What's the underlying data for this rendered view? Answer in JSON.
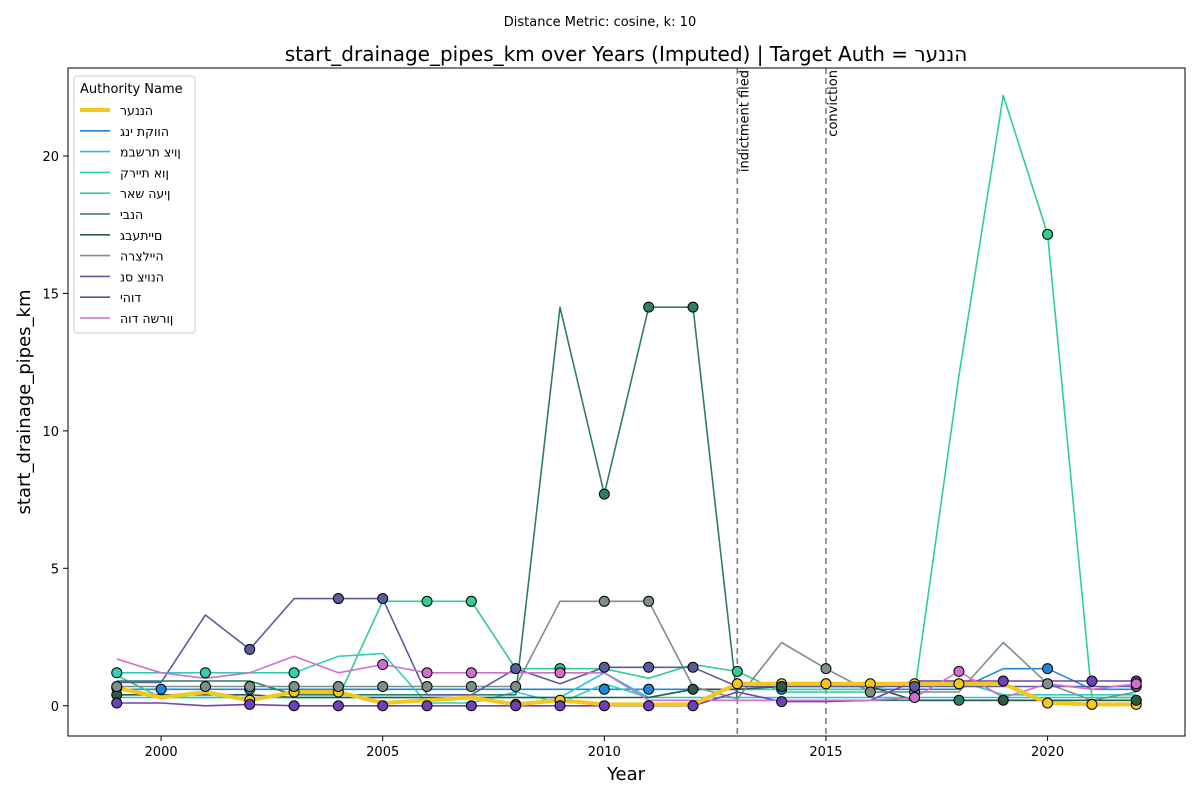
{
  "chart_data": {
    "type": "line",
    "suptitle": "Distance Metric: cosine, k: 10",
    "title": "start_drainage_pipes_km over Years (Imputed) | Target Auth = הננער",
    "xlabel": "Year",
    "ylabel": "start_drainage_pipes_km",
    "xlim": [
      1997.9,
      2023.1
    ],
    "ylim": [
      -1.1,
      23.2
    ],
    "xticks": [
      2000,
      2005,
      2010,
      2015,
      2020
    ],
    "yticks": [
      0,
      5,
      10,
      15,
      20
    ],
    "grid": false,
    "legend": {
      "title": "Authority Name",
      "placement": "top-left"
    },
    "x": [
      1999,
      2000,
      2001,
      2002,
      2003,
      2004,
      2005,
      2006,
      2007,
      2008,
      2009,
      2010,
      2011,
      2012,
      2013,
      2014,
      2015,
      2016,
      2017,
      2018,
      2019,
      2020,
      2021,
      2022
    ],
    "events": [
      {
        "x": 2013,
        "label": "indictment filed"
      },
      {
        "x": 2015,
        "label": "conviction"
      }
    ],
    "series": [
      {
        "name": "הננער",
        "color": "#f2c81e",
        "target": true,
        "values": [
          0.65,
          0.3,
          0.5,
          0.2,
          0.5,
          0.5,
          0.1,
          0.2,
          0.3,
          0.05,
          0.2,
          0.05,
          0.05,
          0.05,
          0.8,
          0.8,
          0.8,
          0.8,
          0.8,
          0.8,
          0.8,
          0.1,
          0.05,
          0.05
        ],
        "markers": [
          1999,
          2002,
          2003,
          2004,
          2008,
          2009,
          2013,
          2014,
          2015,
          2016,
          2017,
          2018,
          2020,
          2021,
          2022
        ]
      },
      {
        "name": "הווקת ינג",
        "color": "#1f88d6",
        "values": [
          0.6,
          0.6,
          0.6,
          0.6,
          0.6,
          0.6,
          0.6,
          0.6,
          0.6,
          0.6,
          0.6,
          0.6,
          0.6,
          0.6,
          0.6,
          0.6,
          0.6,
          0.6,
          0.6,
          0.6,
          1.35,
          1.35,
          0.6,
          0.6
        ],
        "markers": [
          2000,
          2002,
          2010,
          2011,
          2014,
          2020
        ]
      },
      {
        "name": "ןויצ תרשבמ",
        "color": "#22c3e6",
        "values": [
          0.3,
          0.3,
          0.3,
          0.3,
          0.3,
          0.3,
          0.3,
          0.3,
          0.3,
          0.3,
          0.3,
          1.2,
          0.3,
          0.3,
          0.3,
          0.3,
          0.3,
          0.3,
          0.3,
          0.3,
          0.3,
          0.3,
          0.3,
          0.3
        ],
        "markers": []
      },
      {
        "name": "ןוא תיירק",
        "color": "#2ed1b5",
        "values": [
          1.2,
          1.2,
          1.2,
          1.2,
          1.2,
          1.8,
          1.9,
          0.1,
          0.1,
          0.5,
          0.1,
          0.8,
          0.3,
          0.6,
          0.6,
          0.6,
          0.6,
          0.6,
          0.9,
          0.9,
          0.4,
          0.4,
          0.4,
          0.4
        ],
        "markers": [
          1999,
          2001,
          2003
        ]
      },
      {
        "name": "ןיעה שאר",
        "color": "#30cf8c",
        "values": [
          1.1,
          0.3,
          0.3,
          0.3,
          0.3,
          0.3,
          3.8,
          3.8,
          3.8,
          1.35,
          1.35,
          1.35,
          1.0,
          1.5,
          1.25,
          0.5,
          0.5,
          0.5,
          0.5,
          12.0,
          22.2,
          17.15,
          0.3,
          0.3
        ],
        "markers": [
          2006,
          2007,
          2009,
          2013,
          2020
        ]
      },
      {
        "name": "הנבי",
        "color": "#2f7d66",
        "values": [
          0.9,
          0.9,
          0.9,
          0.9,
          0.4,
          0.4,
          0.4,
          0.4,
          0.4,
          0.4,
          14.5,
          7.7,
          14.5,
          14.5,
          0.2,
          0.2,
          0.2,
          0.2,
          0.2,
          0.2,
          0.2,
          0.2,
          0.2,
          0.2
        ],
        "markers": [
          2010,
          2011,
          2012,
          2018
        ]
      },
      {
        "name": "םייתעבג",
        "color": "#2d5a46",
        "values": [
          0.4,
          0.4,
          0.4,
          0.4,
          0.3,
          0.3,
          0.3,
          0.3,
          0.3,
          0.3,
          0.3,
          0.3,
          0.3,
          0.6,
          0.6,
          0.7,
          0.7,
          0.7,
          0.2,
          0.2,
          0.2,
          0.2,
          0.2,
          0.2
        ],
        "markers": [
          1999,
          2012,
          2014,
          2019,
          2022
        ]
      },
      {
        "name": "היילצרה",
        "color": "#7d8f89",
        "values": [
          0.7,
          0.7,
          0.7,
          0.7,
          0.7,
          0.7,
          0.7,
          0.7,
          0.7,
          0.7,
          3.8,
          3.8,
          3.8,
          0.7,
          0.25,
          2.3,
          1.35,
          0.5,
          0.5,
          0.5,
          2.3,
          0.8,
          0.2,
          0.5
        ],
        "markers": [
          1999,
          2001,
          2002,
          2003,
          2004,
          2005,
          2006,
          2007,
          2008,
          2010,
          2011,
          2015,
          2016,
          2017,
          2020
        ]
      },
      {
        "name": "הנויצ סנ",
        "color": "#5b5ca0",
        "values": [
          0.85,
          0.85,
          3.3,
          2.05,
          3.9,
          3.9,
          3.9,
          0.4,
          0.4,
          1.35,
          0.8,
          1.4,
          1.4,
          1.4,
          0.7,
          0.7,
          0.7,
          0.7,
          0.7,
          0.7,
          0.7,
          0.7,
          0.7,
          0.7
        ],
        "markers": [
          2002,
          2004,
          2005,
          2008,
          2010,
          2011,
          2012,
          2017,
          2022
        ]
      },
      {
        "name": "דוהי",
        "color": "#7040b8",
        "values": [
          0.1,
          0.1,
          0.0,
          0.05,
          0.0,
          0.0,
          0.0,
          0.0,
          0.0,
          0.0,
          0.0,
          0.0,
          0.0,
          0.0,
          0.5,
          0.15,
          0.15,
          0.2,
          0.9,
          0.9,
          0.9,
          0.9,
          0.9,
          0.9
        ],
        "markers": [
          1999,
          2002,
          2003,
          2004,
          2005,
          2006,
          2007,
          2008,
          2009,
          2010,
          2011,
          2012,
          2014,
          2019,
          2021,
          2022
        ]
      },
      {
        "name": "ןורשה דוה",
        "color": "#d070cc",
        "values": [
          1.7,
          1.2,
          1.0,
          1.2,
          1.8,
          1.2,
          1.5,
          1.2,
          1.2,
          1.2,
          1.2,
          1.2,
          0.2,
          0.2,
          0.2,
          0.2,
          0.2,
          0.2,
          0.3,
          1.25,
          0.3,
          0.8,
          0.6,
          0.8
        ],
        "markers": [
          2005,
          2006,
          2007,
          2009,
          2017,
          2018,
          2022
        ]
      }
    ]
  }
}
